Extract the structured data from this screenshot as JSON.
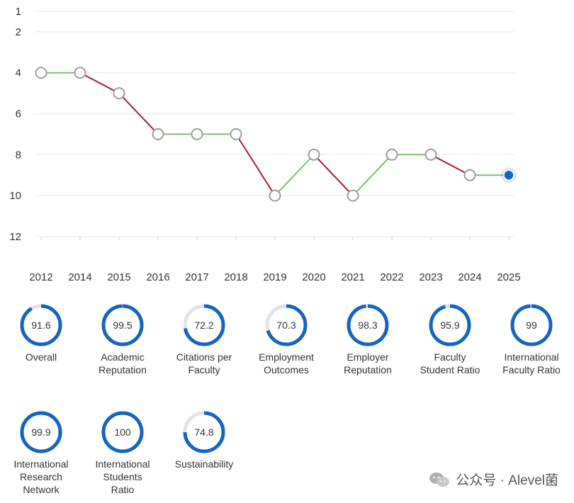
{
  "chart_data": {
    "type": "line",
    "x": [
      "2012",
      "2014",
      "2015",
      "2016",
      "2017",
      "2018",
      "2019",
      "2020",
      "2021",
      "2022",
      "2023",
      "2024",
      "2025"
    ],
    "series": [
      {
        "values": [
          4,
          4,
          5,
          7,
          7,
          7,
          10,
          8,
          10,
          8,
          8,
          9,
          9
        ]
      }
    ],
    "y_tick_labels": [
      "1",
      "2",
      "4",
      "6",
      "8",
      "10",
      "12"
    ],
    "ylim": [
      12,
      1
    ],
    "y_inverted": true,
    "grid": true,
    "colors": {
      "improve": "#77c26a",
      "decline": "#a31f34",
      "last_point": "#1565c0",
      "marker_fill": "#ffffff",
      "marker_stroke": "#9e9e9e"
    }
  },
  "metrics": [
    {
      "value": "91.6",
      "label_lines": [
        "Overall"
      ]
    },
    {
      "value": "99.5",
      "label_lines": [
        "Academic",
        "Reputation"
      ]
    },
    {
      "value": "72.2",
      "label_lines": [
        "Citations per",
        "Faculty"
      ]
    },
    {
      "value": "70.3",
      "label_lines": [
        "Employment",
        "Outcomes"
      ]
    },
    {
      "value": "98.3",
      "label_lines": [
        "Employer",
        "Reputation"
      ]
    },
    {
      "value": "95.9",
      "label_lines": [
        "Faculty",
        "Student Ratio"
      ]
    },
    {
      "value": "99",
      "label_lines": [
        "International",
        "Faculty Ratio"
      ]
    },
    {
      "value": "99.9",
      "label_lines": [
        "International",
        "Research",
        "Network"
      ]
    },
    {
      "value": "100",
      "label_lines": [
        "International",
        "Students",
        "Ratio"
      ]
    },
    {
      "value": "74.8",
      "label_lines": [
        "Sustainability"
      ]
    }
  ],
  "ring_colors": {
    "fill": "#1565c0",
    "track": "#e3e3e3"
  },
  "watermark": {
    "text": "公众号 · Alevel菌",
    "logo": "wechat-icon"
  }
}
